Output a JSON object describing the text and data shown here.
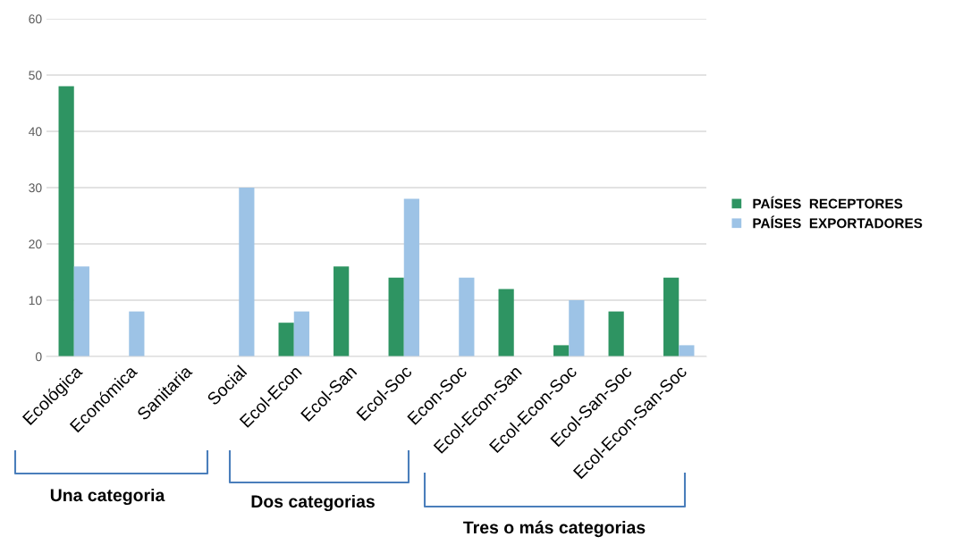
{
  "chart_data": {
    "type": "bar",
    "categories": [
      "Ecológica",
      "Económica",
      "Sanitaria",
      "Social",
      "Ecol-Econ",
      "Ecol-San",
      "Ecol-Soc",
      "Econ-Soc",
      "Ecol-Econ-San",
      "Ecol-Econ-Soc",
      "Ecol-San-Soc",
      "Ecol-Econ-San-Soc"
    ],
    "series": [
      {
        "name": "PAÍSES  RECEPTORES",
        "color": "#2e9462",
        "values": [
          48,
          0,
          0,
          0,
          6,
          16,
          14,
          0,
          12,
          2,
          8,
          14
        ]
      },
      {
        "name": "PAÍSES  EXPORTADORES",
        "color": "#9dc3e6",
        "values": [
          16,
          8,
          0,
          30,
          8,
          0,
          28,
          14,
          0,
          10,
          0,
          2
        ]
      }
    ],
    "ylim": [
      0,
      60
    ],
    "yticks": [
      0,
      10,
      20,
      30,
      40,
      50,
      60
    ],
    "grid": "y",
    "legend": "right",
    "annotations": [
      "Una categoria",
      "Dos categorias",
      "Tres o más categorias"
    ]
  }
}
